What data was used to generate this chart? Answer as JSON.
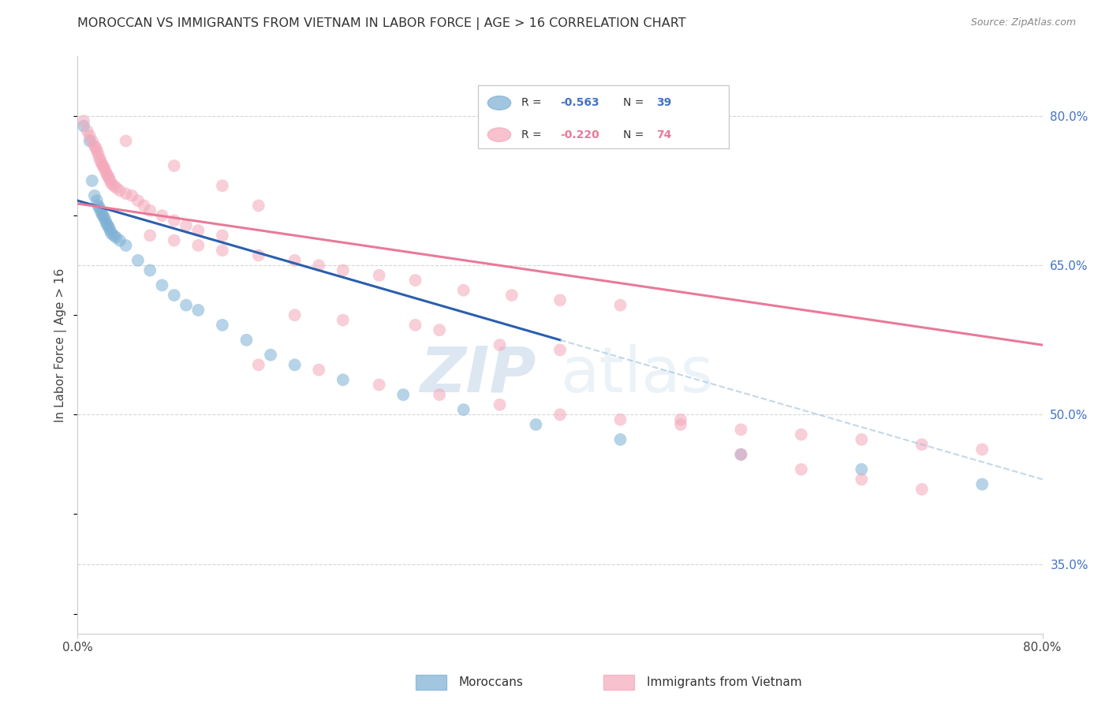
{
  "title": "MOROCCAN VS IMMIGRANTS FROM VIETNAM IN LABOR FORCE | AGE > 16 CORRELATION CHART",
  "source": "Source: ZipAtlas.com",
  "ylabel": "In Labor Force | Age > 16",
  "moroccan_color": "#7bafd4",
  "vietnam_color": "#f4a7b9",
  "moroccan_data": [
    [
      0.5,
      79.0
    ],
    [
      1.0,
      77.5
    ],
    [
      1.2,
      73.5
    ],
    [
      1.4,
      72.0
    ],
    [
      1.6,
      71.5
    ],
    [
      1.7,
      71.0
    ],
    [
      1.8,
      70.8
    ],
    [
      1.9,
      70.5
    ],
    [
      2.0,
      70.2
    ],
    [
      2.1,
      70.0
    ],
    [
      2.2,
      69.8
    ],
    [
      2.3,
      69.5
    ],
    [
      2.4,
      69.2
    ],
    [
      2.5,
      69.0
    ],
    [
      2.6,
      68.8
    ],
    [
      2.7,
      68.5
    ],
    [
      2.8,
      68.2
    ],
    [
      3.0,
      68.0
    ],
    [
      3.2,
      67.8
    ],
    [
      3.5,
      67.5
    ],
    [
      4.0,
      67.0
    ],
    [
      5.0,
      65.5
    ],
    [
      6.0,
      64.5
    ],
    [
      7.0,
      63.0
    ],
    [
      8.0,
      62.0
    ],
    [
      9.0,
      61.0
    ],
    [
      10.0,
      60.5
    ],
    [
      12.0,
      59.0
    ],
    [
      14.0,
      57.5
    ],
    [
      16.0,
      56.0
    ],
    [
      18.0,
      55.0
    ],
    [
      22.0,
      53.5
    ],
    [
      27.0,
      52.0
    ],
    [
      32.0,
      50.5
    ],
    [
      38.0,
      49.0
    ],
    [
      45.0,
      47.5
    ],
    [
      55.0,
      46.0
    ],
    [
      65.0,
      44.5
    ],
    [
      75.0,
      43.0
    ]
  ],
  "vietnam_data": [
    [
      0.5,
      79.5
    ],
    [
      0.8,
      78.5
    ],
    [
      1.0,
      78.0
    ],
    [
      1.2,
      77.5
    ],
    [
      1.4,
      77.0
    ],
    [
      1.5,
      76.8
    ],
    [
      1.6,
      76.5
    ],
    [
      1.7,
      76.2
    ],
    [
      1.8,
      75.8
    ],
    [
      1.9,
      75.5
    ],
    [
      2.0,
      75.2
    ],
    [
      2.1,
      75.0
    ],
    [
      2.2,
      74.8
    ],
    [
      2.3,
      74.5
    ],
    [
      2.4,
      74.2
    ],
    [
      2.5,
      74.0
    ],
    [
      2.6,
      73.8
    ],
    [
      2.7,
      73.5
    ],
    [
      2.8,
      73.2
    ],
    [
      3.0,
      73.0
    ],
    [
      3.2,
      72.8
    ],
    [
      3.5,
      72.5
    ],
    [
      4.0,
      72.2
    ],
    [
      4.5,
      72.0
    ],
    [
      5.0,
      71.5
    ],
    [
      5.5,
      71.0
    ],
    [
      6.0,
      70.5
    ],
    [
      7.0,
      70.0
    ],
    [
      8.0,
      69.5
    ],
    [
      9.0,
      69.0
    ],
    [
      10.0,
      68.5
    ],
    [
      12.0,
      68.0
    ],
    [
      4.0,
      77.5
    ],
    [
      8.0,
      75.0
    ],
    [
      12.0,
      73.0
    ],
    [
      15.0,
      71.0
    ],
    [
      6.0,
      68.0
    ],
    [
      8.0,
      67.5
    ],
    [
      10.0,
      67.0
    ],
    [
      12.0,
      66.5
    ],
    [
      15.0,
      66.0
    ],
    [
      18.0,
      65.5
    ],
    [
      20.0,
      65.0
    ],
    [
      22.0,
      64.5
    ],
    [
      25.0,
      64.0
    ],
    [
      28.0,
      63.5
    ],
    [
      32.0,
      62.5
    ],
    [
      36.0,
      62.0
    ],
    [
      40.0,
      61.5
    ],
    [
      45.0,
      61.0
    ],
    [
      18.0,
      60.0
    ],
    [
      22.0,
      59.5
    ],
    [
      28.0,
      59.0
    ],
    [
      30.0,
      58.5
    ],
    [
      35.0,
      57.0
    ],
    [
      40.0,
      56.5
    ],
    [
      15.0,
      55.0
    ],
    [
      20.0,
      54.5
    ],
    [
      25.0,
      53.0
    ],
    [
      30.0,
      52.0
    ],
    [
      35.0,
      51.0
    ],
    [
      40.0,
      50.0
    ],
    [
      45.0,
      49.5
    ],
    [
      50.0,
      49.0
    ],
    [
      55.0,
      48.5
    ],
    [
      60.0,
      48.0
    ],
    [
      65.0,
      47.5
    ],
    [
      70.0,
      47.0
    ],
    [
      75.0,
      46.5
    ],
    [
      50.0,
      49.5
    ],
    [
      55.0,
      46.0
    ],
    [
      60.0,
      44.5
    ],
    [
      65.0,
      43.5
    ],
    [
      70.0,
      42.5
    ]
  ],
  "blue_line": {
    "x0": 0.0,
    "y0": 71.5,
    "x1": 40.0,
    "y1": 57.5
  },
  "pink_line": {
    "x0": 0.0,
    "y0": 71.2,
    "x1": 80.0,
    "y1": 57.0
  },
  "blue_dashed_line": {
    "x0": 40.0,
    "y0": 57.5,
    "x1": 80.0,
    "y1": 43.5
  },
  "xlim": [
    0.0,
    80.0
  ],
  "ylim": [
    28.0,
    86.0
  ],
  "ytick_values": [
    80.0,
    65.0,
    50.0,
    35.0
  ],
  "ytick_labels": [
    "80.0%",
    "65.0%",
    "50.0%",
    "35.0%"
  ],
  "background_color": "#ffffff",
  "grid_color": "#cccccc",
  "title_color": "#333333",
  "source_color": "#888888"
}
